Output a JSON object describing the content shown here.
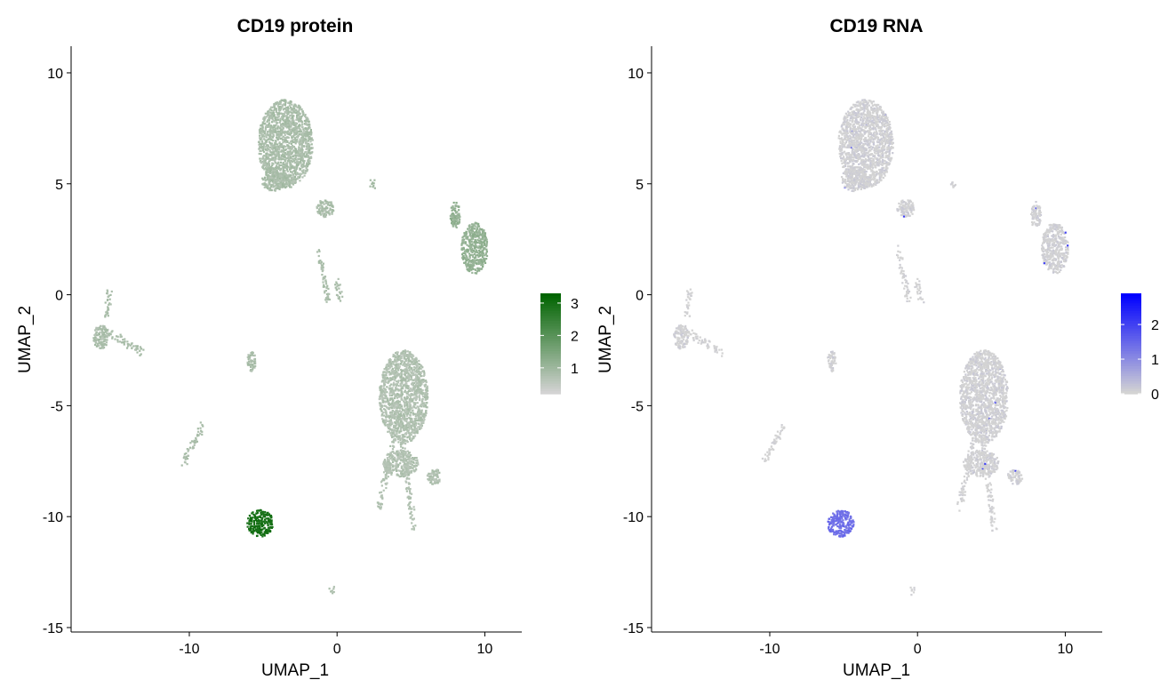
{
  "chart_data": [
    {
      "type": "scatter",
      "title": "CD19 protein",
      "xlabel": "UMAP_1",
      "ylabel": "UMAP_2",
      "xlim": [
        -18.0,
        12.5
      ],
      "ylim": [
        -15.2,
        11.2
      ],
      "xticks": [
        -10,
        0,
        10
      ],
      "xtick_labels": [
        "-10",
        "0",
        "10"
      ],
      "yticks": [
        -15,
        -10,
        -5,
        0,
        5,
        10
      ],
      "ytick_labels": [
        "-15",
        "-10",
        "-5",
        "0",
        "5",
        "10"
      ],
      "grid": false,
      "color_low": "#d3d3d3",
      "color_high": "#006400",
      "legend": {
        "placement": "right",
        "ticks": [
          1,
          2,
          3
        ],
        "tick_labels": [
          "1",
          "2",
          "3"
        ],
        "min": 0.2,
        "max": 3.3
      },
      "clusters": [
        {
          "name": "c1",
          "cx": -3.5,
          "cy": 6.8,
          "rx": 1.85,
          "ry": 2.0,
          "value": 0.8
        },
        {
          "name": "c1b",
          "cx": -4.2,
          "cy": 5.2,
          "rx": 0.95,
          "ry": 0.55,
          "value": 0.8
        },
        {
          "name": "c2",
          "cx": -0.8,
          "cy": 3.9,
          "rx": 0.6,
          "ry": 0.4,
          "value": 0.8
        },
        {
          "name": "c3",
          "cx": 9.3,
          "cy": 2.1,
          "rx": 0.9,
          "ry": 1.15,
          "value": 1.15
        },
        {
          "name": "c3b",
          "cx": 8.0,
          "cy": 3.6,
          "rx": 0.35,
          "ry": 0.6,
          "value": 1.15
        },
        {
          "name": "c4",
          "cx": -16.0,
          "cy": -1.9,
          "rx": 0.5,
          "ry": 0.55,
          "value": 0.8
        },
        {
          "name": "c5",
          "cx": 4.5,
          "cy": -4.6,
          "rx": 1.65,
          "ry": 2.1,
          "value": 0.7
        },
        {
          "name": "c5b",
          "cx": 4.3,
          "cy": -7.6,
          "rx": 1.2,
          "ry": 0.6,
          "value": 0.7
        },
        {
          "name": "c5c",
          "cx": 6.6,
          "cy": -8.2,
          "rx": 0.5,
          "ry": 0.35,
          "value": 0.7
        },
        {
          "name": "c6",
          "cx": -5.2,
          "cy": -10.3,
          "rx": 0.9,
          "ry": 0.6,
          "value": 3.0
        },
        {
          "name": "c7",
          "cx": -5.8,
          "cy": -3.0,
          "rx": 0.3,
          "ry": 0.45,
          "value": 0.8
        }
      ],
      "streaks": [
        {
          "name": "s1",
          "x0": -16.0,
          "y0": -1.5,
          "x1": -13.2,
          "y1": -2.6,
          "value": 0.8
        },
        {
          "name": "s2",
          "x0": -15.6,
          "y0": -1.0,
          "x1": -15.4,
          "y1": 0.2,
          "value": 0.8
        },
        {
          "name": "s3",
          "x0": -1.3,
          "y0": 2.1,
          "x1": -0.6,
          "y1": -0.3,
          "value": 0.8
        },
        {
          "name": "s4",
          "x0": -0.1,
          "y0": 0.6,
          "x1": 0.3,
          "y1": -0.3,
          "value": 0.8
        },
        {
          "name": "s5",
          "x0": -10.4,
          "y0": -7.6,
          "x1": -9.0,
          "y1": -5.8,
          "value": 0.8
        },
        {
          "name": "s6",
          "x0": 2.8,
          "y0": -9.7,
          "x1": 4.0,
          "y1": -6.0,
          "value": 0.7
        },
        {
          "name": "s7",
          "x0": 4.4,
          "y0": -6.4,
          "x1": 5.2,
          "y1": -10.6,
          "value": 0.7
        },
        {
          "name": "s8",
          "x0": 2.3,
          "y0": 5.1,
          "x1": 2.6,
          "y1": 4.8,
          "value": 0.9
        },
        {
          "name": "s9",
          "x0": -0.4,
          "y0": -13.2,
          "x1": -0.3,
          "y1": -13.5,
          "value": 0.8
        }
      ]
    },
    {
      "type": "scatter",
      "title": "CD19 RNA",
      "xlabel": "UMAP_1",
      "ylabel": "UMAP_2",
      "xlim": [
        -18.0,
        12.5
      ],
      "ylim": [
        -15.2,
        11.2
      ],
      "xticks": [
        -10,
        0,
        10
      ],
      "xtick_labels": [
        "-10",
        "0",
        "10"
      ],
      "yticks": [
        -15,
        -10,
        -5,
        0,
        5,
        10
      ],
      "ytick_labels": [
        "-15",
        "-10",
        "-5",
        "0",
        "5",
        "10"
      ],
      "grid": false,
      "color_low": "#d3d3d3",
      "color_high": "#0000ff",
      "legend": {
        "placement": "right",
        "ticks": [
          0,
          1,
          2
        ],
        "tick_labels": [
          "0",
          "1",
          "2"
        ],
        "min": 0.0,
        "max": 2.9
      },
      "clusters": [
        {
          "name": "c1",
          "cx": -3.5,
          "cy": 6.8,
          "rx": 1.85,
          "ry": 2.0,
          "value": 0.0
        },
        {
          "name": "c1b",
          "cx": -4.2,
          "cy": 5.2,
          "rx": 0.95,
          "ry": 0.55,
          "value": 0.0
        },
        {
          "name": "c2",
          "cx": -0.8,
          "cy": 3.9,
          "rx": 0.6,
          "ry": 0.4,
          "value": 0.0
        },
        {
          "name": "c3",
          "cx": 9.3,
          "cy": 2.1,
          "rx": 0.9,
          "ry": 1.15,
          "value": 0.0
        },
        {
          "name": "c3b",
          "cx": 8.0,
          "cy": 3.6,
          "rx": 0.35,
          "ry": 0.6,
          "value": 0.0
        },
        {
          "name": "c4",
          "cx": -16.0,
          "cy": -1.9,
          "rx": 0.5,
          "ry": 0.55,
          "value": 0.0
        },
        {
          "name": "c5",
          "cx": 4.5,
          "cy": -4.6,
          "rx": 1.65,
          "ry": 2.1,
          "value": 0.0
        },
        {
          "name": "c5b",
          "cx": 4.3,
          "cy": -7.6,
          "rx": 1.2,
          "ry": 0.6,
          "value": 0.0
        },
        {
          "name": "c5c",
          "cx": 6.6,
          "cy": -8.2,
          "rx": 0.5,
          "ry": 0.35,
          "value": 0.0
        },
        {
          "name": "c6",
          "cx": -5.2,
          "cy": -10.3,
          "rx": 0.9,
          "ry": 0.6,
          "value": 1.4
        },
        {
          "name": "c7",
          "cx": -5.8,
          "cy": -3.0,
          "rx": 0.3,
          "ry": 0.45,
          "value": 0.0
        }
      ],
      "streaks": [
        {
          "name": "s1",
          "x0": -16.0,
          "y0": -1.5,
          "x1": -13.2,
          "y1": -2.6,
          "value": 0.0
        },
        {
          "name": "s2",
          "x0": -15.6,
          "y0": -1.0,
          "x1": -15.4,
          "y1": 0.2,
          "value": 0.0
        },
        {
          "name": "s3",
          "x0": -1.3,
          "y0": 2.1,
          "x1": -0.6,
          "y1": -0.3,
          "value": 0.0
        },
        {
          "name": "s4",
          "x0": -0.1,
          "y0": 0.6,
          "x1": 0.3,
          "y1": -0.3,
          "value": 0.0
        },
        {
          "name": "s5",
          "x0": -10.4,
          "y0": -7.6,
          "x1": -9.0,
          "y1": -5.8,
          "value": 0.0
        },
        {
          "name": "s6",
          "x0": 2.8,
          "y0": -9.7,
          "x1": 4.0,
          "y1": -6.0,
          "value": 0.0
        },
        {
          "name": "s7",
          "x0": 4.4,
          "y0": -6.4,
          "x1": 5.2,
          "y1": -10.6,
          "value": 0.0
        },
        {
          "name": "s8",
          "x0": 2.3,
          "y0": 5.1,
          "x1": 2.6,
          "y1": 4.8,
          "value": 0.0
        },
        {
          "name": "s9",
          "x0": -0.4,
          "y0": -13.2,
          "x1": -0.3,
          "y1": -13.5,
          "value": 0.0
        }
      ]
    }
  ]
}
